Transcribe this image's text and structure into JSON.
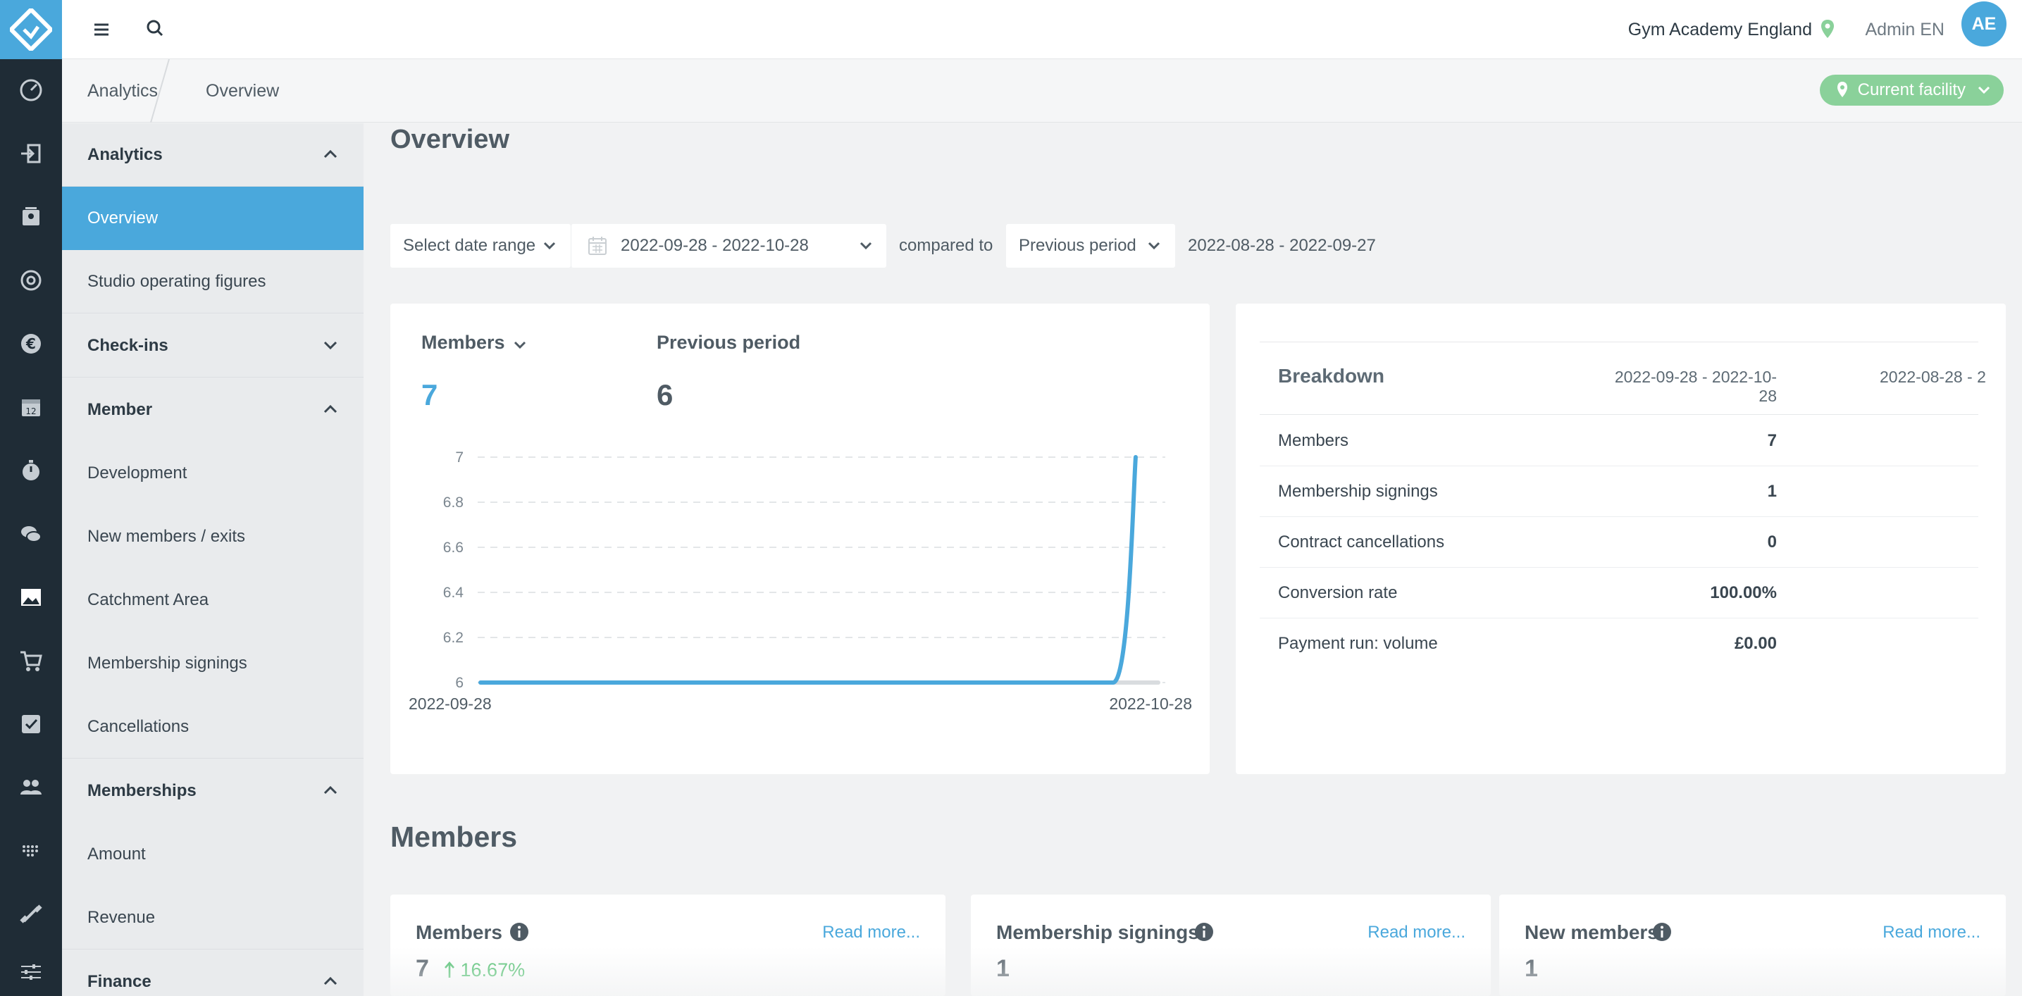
{
  "topbar": {
    "facility_name": "Gym Academy England",
    "user_name": "Admin EN",
    "avatar_initials": "AE"
  },
  "breadcrumb": [
    "Analytics",
    "Overview"
  ],
  "facility_button": "Current facility",
  "sidebar": {
    "items": [
      {
        "label": "Analytics",
        "type": "section",
        "expanded": true
      },
      {
        "label": "Overview",
        "type": "link",
        "active": true
      },
      {
        "label": "Studio operating figures",
        "type": "link"
      },
      {
        "label": "Check-ins",
        "type": "section",
        "expanded": false
      },
      {
        "label": "Member",
        "type": "section",
        "expanded": true
      },
      {
        "label": "Development",
        "type": "link"
      },
      {
        "label": "New members / exits",
        "type": "link"
      },
      {
        "label": "Catchment Area",
        "type": "link"
      },
      {
        "label": "Membership signings",
        "type": "link"
      },
      {
        "label": "Cancellations",
        "type": "link"
      },
      {
        "label": "Memberships",
        "type": "section",
        "expanded": true
      },
      {
        "label": "Amount",
        "type": "link"
      },
      {
        "label": "Revenue",
        "type": "link"
      },
      {
        "label": "Finance",
        "type": "section",
        "expanded": true
      }
    ]
  },
  "page": {
    "title": "Overview"
  },
  "filters": {
    "range_select": "Select date range",
    "date_range": "2022-09-28 - 2022-10-28",
    "compared_to_label": "compared to",
    "compare_select": "Previous period",
    "previous_dates": "2022-08-28 - 2022-09-27"
  },
  "chart_card": {
    "metric_label": "Members",
    "metric_value": "7",
    "previous_label": "Previous period",
    "previous_value": "6"
  },
  "chart_data": {
    "type": "line",
    "x_labels": [
      "2022-09-28",
      "2022-10-28"
    ],
    "y_ticks": [
      "7",
      "6.8",
      "6.6",
      "6.4",
      "6.2",
      "6"
    ],
    "ylim": [
      6,
      7
    ],
    "grid": true,
    "series": [
      {
        "color": "#4aa8dc",
        "x": [
          "2022-09-28",
          "2022-10-25",
          "2022-10-26",
          "2022-10-27"
        ],
        "values": [
          6,
          6,
          6,
          7
        ]
      },
      {
        "color": "#d9dcdf",
        "x": [
          "2022-09-28",
          "2022-10-28"
        ],
        "values": [
          6,
          6
        ]
      }
    ]
  },
  "breakdown": {
    "title": "Breakdown",
    "col_current": "2022-09-28 - 2022-10-28",
    "col_previous": "2022-08-28 - 2",
    "rows": [
      {
        "label": "Members",
        "value": "7"
      },
      {
        "label": "Membership signings",
        "value": "1"
      },
      {
        "label": "Contract cancellations",
        "value": "0"
      },
      {
        "label": "Conversion rate",
        "value": "100.00%"
      },
      {
        "label": "Payment run: volume",
        "value": "£0.00"
      }
    ]
  },
  "members_section": {
    "title": "Members",
    "read_more": "Read more...",
    "cards": [
      {
        "title": "Members",
        "value": "7",
        "trend": "16.67%"
      },
      {
        "title": "Membership signings",
        "value": "1"
      },
      {
        "title": "New members",
        "value": "1"
      }
    ]
  },
  "colors": {
    "accent": "#4aa8dc",
    "rail": "#1f2c36",
    "positive": "#4bbf6b",
    "facility": "#8ad19a"
  }
}
